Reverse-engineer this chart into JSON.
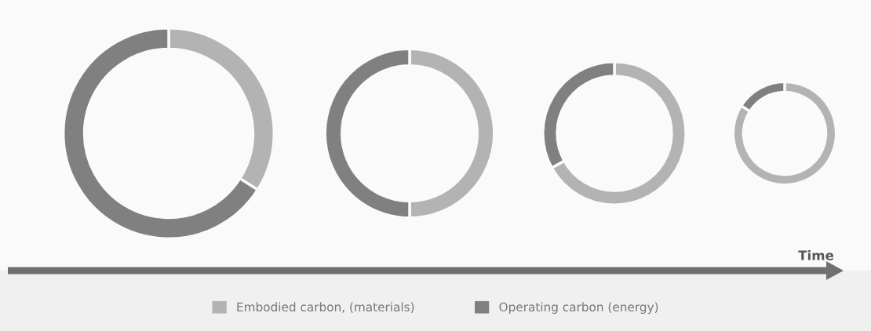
{
  "chart_data": [
    {
      "type": "donut",
      "categories": [
        "Embodied carbon, (materials)",
        "Operating carbon (energy)"
      ],
      "values": [
        34,
        66
      ],
      "colors": [
        "#b3b3b3",
        "#808080"
      ],
      "legend": "bottom"
    },
    {
      "type": "donut",
      "categories": [
        null,
        null
      ],
      "values": [
        50,
        50
      ],
      "colors": [
        "#b3b3b3",
        "#808080"
      ]
    },
    {
      "type": "donut",
      "categories": [
        null,
        null
      ],
      "values": [
        67,
        33
      ],
      "colors": [
        "#b3b3b3",
        "#808080"
      ]
    },
    {
      "type": "donut",
      "categories": [
        null,
        null
      ],
      "values": [
        84,
        16
      ],
      "colors": [
        "#b3b3b3",
        "#808080"
      ],
      "annotations": [
        "Time"
      ]
    }
  ]
}
